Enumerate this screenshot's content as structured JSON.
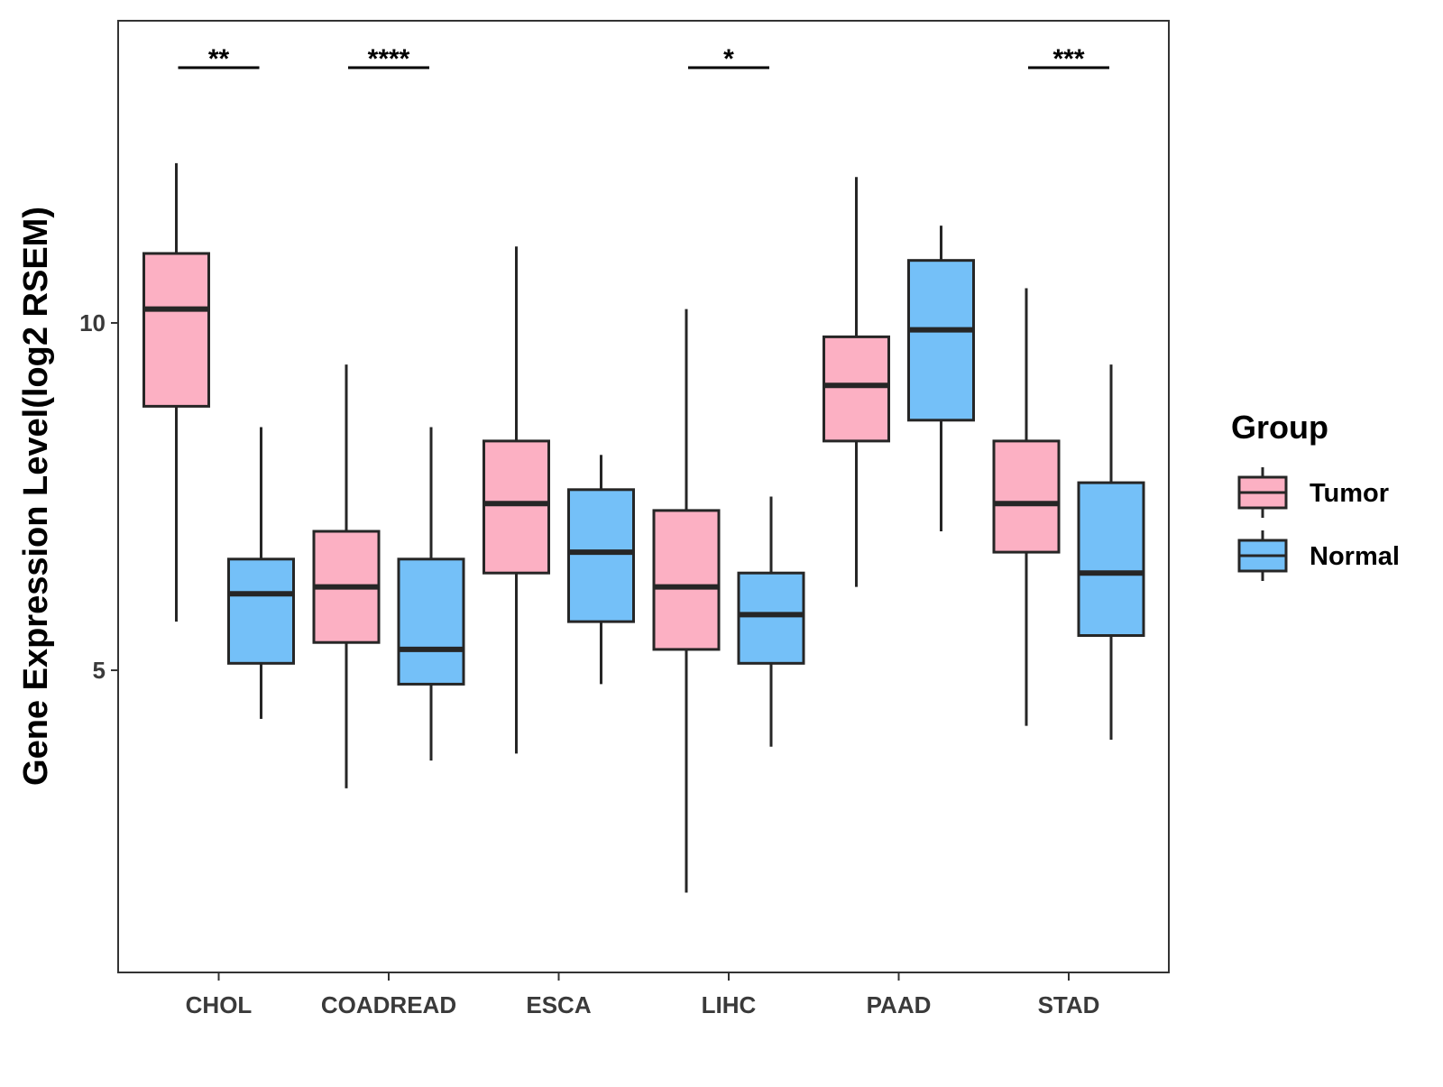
{
  "chart_data": {
    "type": "boxplot",
    "title": "",
    "xlabel": "",
    "ylabel": "Gene Expression Level(log2 RSEM)",
    "ylim": [
      0.65,
      14.35
    ],
    "yticks": [
      5,
      10
    ],
    "grid": false,
    "categories": [
      "CHOL",
      "COADREAD",
      "ESCA",
      "LIHC",
      "PAAD",
      "STAD"
    ],
    "legend": {
      "title": "Group",
      "position": "right",
      "entries": [
        {
          "name": "Tumor",
          "color": "#FCB0C3"
        },
        {
          "name": "Normal",
          "color": "#74C0F8"
        }
      ]
    },
    "series": [
      {
        "name": "Tumor",
        "color": "#FCB0C3",
        "boxes": [
          {
            "category": "CHOL",
            "min": 5.7,
            "q1": 8.8,
            "median": 10.2,
            "q3": 11.0,
            "max": 12.3
          },
          {
            "category": "COADREAD",
            "min": 3.3,
            "q1": 5.4,
            "median": 6.2,
            "q3": 7.0,
            "max": 9.4
          },
          {
            "category": "ESCA",
            "min": 3.8,
            "q1": 6.4,
            "median": 7.4,
            "q3": 8.3,
            "max": 11.1
          },
          {
            "category": "LIHC",
            "min": 1.8,
            "q1": 5.3,
            "median": 6.2,
            "q3": 7.3,
            "max": 10.2
          },
          {
            "category": "PAAD",
            "min": 6.2,
            "q1": 8.3,
            "median": 9.1,
            "q3": 9.8,
            "max": 12.1
          },
          {
            "category": "STAD",
            "min": 4.2,
            "q1": 6.7,
            "median": 7.4,
            "q3": 8.3,
            "max": 10.5
          }
        ]
      },
      {
        "name": "Normal",
        "color": "#74C0F8",
        "boxes": [
          {
            "category": "CHOL",
            "min": 4.3,
            "q1": 5.1,
            "median": 6.1,
            "q3": 6.6,
            "max": 8.5
          },
          {
            "category": "COADREAD",
            "min": 3.7,
            "q1": 4.8,
            "median": 5.3,
            "q3": 6.6,
            "max": 8.5
          },
          {
            "category": "ESCA",
            "min": 4.8,
            "q1": 5.7,
            "median": 6.7,
            "q3": 7.6,
            "max": 8.1
          },
          {
            "category": "LIHC",
            "min": 3.9,
            "q1": 5.1,
            "median": 5.8,
            "q3": 6.4,
            "max": 7.5
          },
          {
            "category": "PAAD",
            "min": 7.0,
            "q1": 8.6,
            "median": 9.9,
            "q3": 10.9,
            "max": 11.4
          },
          {
            "category": "STAD",
            "min": 4.0,
            "q1": 5.5,
            "median": 6.4,
            "q3": 7.7,
            "max": 9.4
          }
        ]
      }
    ],
    "significance": [
      {
        "category": "CHOL",
        "label": "**"
      },
      {
        "category": "COADREAD",
        "label": "****"
      },
      {
        "category": "LIHC",
        "label": "*"
      },
      {
        "category": "STAD",
        "label": "***"
      }
    ]
  }
}
